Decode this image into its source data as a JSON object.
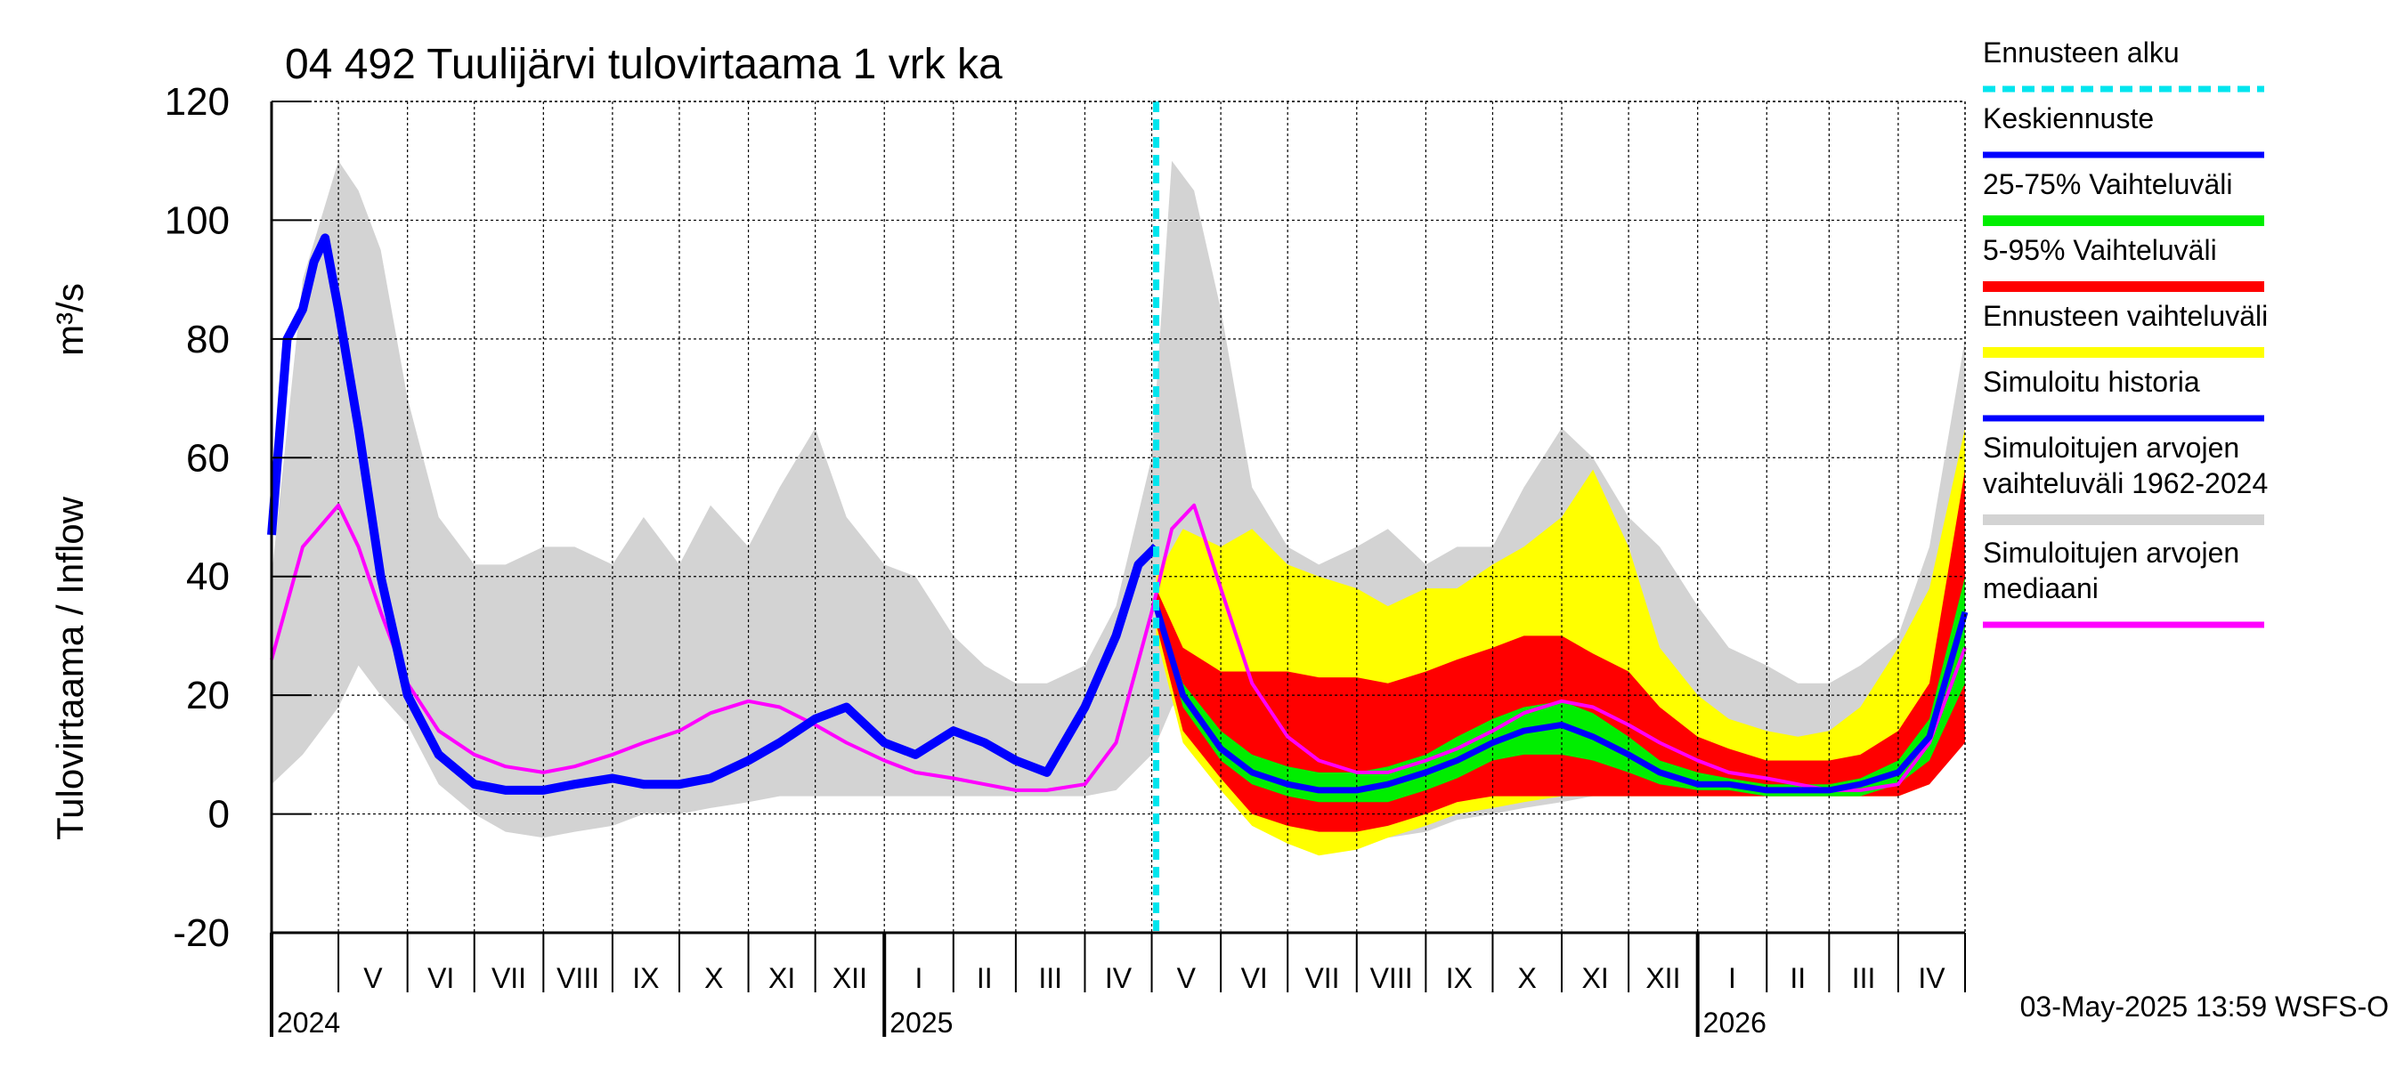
{
  "chart_data": {
    "type": "area",
    "title": "04 492 Tuulijärvi tulovirtaama 1 vrk ka",
    "ylabel": "Tulovirtaama / Inflow",
    "yunit": "m³/s",
    "ylim": [
      -20,
      120
    ],
    "yticks": [
      -20,
      0,
      20,
      40,
      60,
      80,
      100,
      120
    ],
    "xlim": [
      "2024-04-01",
      "2026-05-01"
    ],
    "grid": true,
    "legend_position": "right",
    "forecast_start": "2025-05-03",
    "months": [
      {
        "label": "V",
        "start": "2024-05-01"
      },
      {
        "label": "VI",
        "start": "2024-06-01"
      },
      {
        "label": "VII",
        "start": "2024-07-01"
      },
      {
        "label": "VIII",
        "start": "2024-08-01"
      },
      {
        "label": "IX",
        "start": "2024-09-01"
      },
      {
        "label": "X",
        "start": "2024-10-01"
      },
      {
        "label": "XI",
        "start": "2024-11-01"
      },
      {
        "label": "XII",
        "start": "2024-12-01"
      },
      {
        "label": "I",
        "start": "2025-01-01"
      },
      {
        "label": "II",
        "start": "2025-02-01"
      },
      {
        "label": "III",
        "start": "2025-03-01"
      },
      {
        "label": "IV",
        "start": "2025-04-01"
      },
      {
        "label": "V",
        "start": "2025-05-01"
      },
      {
        "label": "VI",
        "start": "2025-06-01"
      },
      {
        "label": "VII",
        "start": "2025-07-01"
      },
      {
        "label": "VIII",
        "start": "2025-08-01"
      },
      {
        "label": "IX",
        "start": "2025-09-01"
      },
      {
        "label": "X",
        "start": "2025-10-01"
      },
      {
        "label": "XI",
        "start": "2025-11-01"
      },
      {
        "label": "XII",
        "start": "2025-12-01"
      },
      {
        "label": "I",
        "start": "2026-01-01"
      },
      {
        "label": "II",
        "start": "2026-02-01"
      },
      {
        "label": "III",
        "start": "2026-03-01"
      },
      {
        "label": "IV",
        "start": "2026-04-01"
      }
    ],
    "years": [
      {
        "label": "2024",
        "date": "2024-04-01"
      },
      {
        "label": "2025",
        "date": "2025-01-01"
      },
      {
        "label": "2026",
        "date": "2026-01-01"
      }
    ],
    "legend": [
      {
        "label": "Ennusteen alku",
        "color": "#00e5ee",
        "style": "dashed"
      },
      {
        "label": "Keskiennuste",
        "color": "#0000ff",
        "style": "line"
      },
      {
        "label": "25-75% Vaihteluväli",
        "color": "#00ee00",
        "style": "band"
      },
      {
        "label": "5-95% Vaihteluväli",
        "color": "#ff0000",
        "style": "band"
      },
      {
        "label": "Ennusteen vaihteluväli",
        "color": "#ffff00",
        "style": "band"
      },
      {
        "label": "Simuloitu historia",
        "color": "#0000ff",
        "style": "line"
      },
      {
        "label": "Simuloitujen arvojen\nvaihteluväli 1962-2024",
        "color": "#d3d3d3",
        "style": "band"
      },
      {
        "label": "Simuloitujen arvojen\nmediaani",
        "color": "#ff00ff",
        "style": "line"
      }
    ],
    "series": [
      {
        "name": "Simuloitujen arvojen vaihteluväli 1962-2024",
        "kind": "band",
        "color": "#d3d3d3",
        "x": [
          "2024-04-01",
          "2024-04-15",
          "2024-05-01",
          "2024-05-10",
          "2024-05-20",
          "2024-06-01",
          "2024-06-15",
          "2024-07-01",
          "2024-07-15",
          "2024-08-01",
          "2024-08-15",
          "2024-09-01",
          "2024-09-15",
          "2024-10-01",
          "2024-10-15",
          "2024-11-01",
          "2024-11-15",
          "2024-12-01",
          "2024-12-15",
          "2025-01-01",
          "2025-01-15",
          "2025-02-01",
          "2025-02-15",
          "2025-03-01",
          "2025-03-15",
          "2025-04-01",
          "2025-04-15",
          "2025-05-01",
          "2025-05-10",
          "2025-05-20",
          "2025-06-01",
          "2025-06-15",
          "2025-07-01",
          "2025-07-15",
          "2025-08-01",
          "2025-08-15",
          "2025-09-01",
          "2025-09-15",
          "2025-10-01",
          "2025-10-15",
          "2025-11-01",
          "2025-11-15",
          "2025-12-01",
          "2025-12-15",
          "2026-01-01",
          "2026-01-15",
          "2026-02-01",
          "2026-02-15",
          "2026-03-01",
          "2026-03-15",
          "2026-04-01",
          "2026-04-15",
          "2026-05-01"
        ],
        "low": [
          5,
          10,
          18,
          25,
          20,
          15,
          5,
          0,
          -3,
          -4,
          -3,
          -2,
          0,
          0,
          1,
          2,
          3,
          3,
          3,
          3,
          3,
          3,
          3,
          3,
          3,
          3,
          4,
          10,
          18,
          22,
          15,
          6,
          1,
          -2,
          -4,
          -4,
          -3,
          -1,
          0,
          1,
          2,
          3,
          3,
          3,
          3,
          3,
          3,
          3,
          3,
          3,
          3,
          5,
          15
        ],
        "high": [
          40,
          90,
          110,
          105,
          95,
          70,
          50,
          42,
          42,
          45,
          45,
          42,
          50,
          42,
          52,
          45,
          55,
          65,
          50,
          42,
          40,
          30,
          25,
          22,
          22,
          25,
          35,
          60,
          110,
          105,
          85,
          55,
          45,
          42,
          45,
          48,
          42,
          45,
          45,
          55,
          65,
          60,
          50,
          45,
          35,
          28,
          25,
          22,
          22,
          25,
          30,
          45,
          80
        ]
      },
      {
        "name": "Ennusteen vaihteluväli",
        "kind": "band",
        "color": "#ffff00",
        "x": [
          "2025-05-03",
          "2025-05-15",
          "2025-06-01",
          "2025-06-15",
          "2025-07-01",
          "2025-07-15",
          "2025-08-01",
          "2025-08-15",
          "2025-09-01",
          "2025-09-15",
          "2025-10-01",
          "2025-10-15",
          "2025-11-01",
          "2025-11-15",
          "2025-12-01",
          "2025-12-15",
          "2026-01-01",
          "2026-01-15",
          "2026-02-01",
          "2026-02-15",
          "2026-03-01",
          "2026-03-15",
          "2026-04-01",
          "2026-04-15",
          "2026-05-01"
        ],
        "low": [
          30,
          12,
          4,
          -2,
          -5,
          -7,
          -6,
          -4,
          -2,
          0,
          1,
          2,
          3,
          3,
          3,
          3,
          3,
          3,
          3,
          3,
          3,
          3,
          3,
          5,
          15
        ],
        "high": [
          40,
          48,
          45,
          48,
          42,
          40,
          38,
          35,
          38,
          38,
          42,
          45,
          50,
          58,
          45,
          28,
          20,
          16,
          14,
          13,
          14,
          18,
          28,
          38,
          65
        ]
      },
      {
        "name": "5-95% Vaihteluväli",
        "kind": "band",
        "color": "#ff0000",
        "x": [
          "2025-05-03",
          "2025-05-15",
          "2025-06-01",
          "2025-06-15",
          "2025-07-01",
          "2025-07-15",
          "2025-08-01",
          "2025-08-15",
          "2025-09-01",
          "2025-09-15",
          "2025-10-01",
          "2025-10-15",
          "2025-11-01",
          "2025-11-15",
          "2025-12-01",
          "2025-12-15",
          "2026-01-01",
          "2026-01-15",
          "2026-02-01",
          "2026-02-15",
          "2026-03-01",
          "2026-03-15",
          "2026-04-01",
          "2026-04-15",
          "2026-05-01"
        ],
        "low": [
          32,
          14,
          6,
          0,
          -2,
          -3,
          -3,
          -2,
          0,
          2,
          3,
          3,
          3,
          3,
          3,
          3,
          3,
          3,
          3,
          3,
          3,
          3,
          3,
          5,
          12
        ],
        "high": [
          38,
          28,
          24,
          24,
          24,
          23,
          23,
          22,
          24,
          26,
          28,
          30,
          30,
          27,
          24,
          18,
          13,
          11,
          9,
          9,
          9,
          10,
          14,
          22,
          58
        ]
      },
      {
        "name": "25-75% Vaihteluväli",
        "kind": "band",
        "color": "#00ee00",
        "x": [
          "2025-05-03",
          "2025-05-15",
          "2025-06-01",
          "2025-06-15",
          "2025-07-01",
          "2025-07-15",
          "2025-08-01",
          "2025-08-15",
          "2025-09-01",
          "2025-09-15",
          "2025-10-01",
          "2025-10-15",
          "2025-11-01",
          "2025-11-15",
          "2025-12-01",
          "2025-12-15",
          "2026-01-01",
          "2026-01-15",
          "2026-02-01",
          "2026-02-15",
          "2026-03-01",
          "2026-03-15",
          "2026-04-01",
          "2026-04-15",
          "2026-05-01"
        ],
        "low": [
          34,
          18,
          9,
          5,
          3,
          2,
          2,
          2,
          4,
          6,
          9,
          10,
          10,
          9,
          7,
          5,
          4,
          4,
          3,
          3,
          3,
          3,
          5,
          9,
          22
        ],
        "high": [
          36,
          22,
          14,
          10,
          8,
          7,
          7,
          8,
          10,
          13,
          16,
          18,
          19,
          17,
          13,
          9,
          7,
          6,
          5,
          5,
          5,
          6,
          9,
          16,
          40
        ]
      },
      {
        "name": "Simuloitujen arvojen mediaani",
        "kind": "line",
        "color": "#ff00ff",
        "x": [
          "2024-04-01",
          "2024-04-15",
          "2024-05-01",
          "2024-05-10",
          "2024-05-20",
          "2024-06-01",
          "2024-06-15",
          "2024-07-01",
          "2024-07-15",
          "2024-08-01",
          "2024-08-15",
          "2024-09-01",
          "2024-09-15",
          "2024-10-01",
          "2024-10-15",
          "2024-11-01",
          "2024-11-15",
          "2024-12-01",
          "2024-12-15",
          "2025-01-01",
          "2025-01-15",
          "2025-02-01",
          "2025-02-15",
          "2025-03-01",
          "2025-03-15",
          "2025-04-01",
          "2025-04-15",
          "2025-05-01",
          "2025-05-10",
          "2025-05-20",
          "2025-06-01",
          "2025-06-15",
          "2025-07-01",
          "2025-07-15",
          "2025-08-01",
          "2025-08-15",
          "2025-09-01",
          "2025-09-15",
          "2025-10-01",
          "2025-10-15",
          "2025-11-01",
          "2025-11-15",
          "2025-12-01",
          "2025-12-15",
          "2026-01-01",
          "2026-01-15",
          "2026-02-01",
          "2026-02-15",
          "2026-03-01",
          "2026-03-15",
          "2026-04-01",
          "2026-04-15",
          "2026-05-01"
        ],
        "y": [
          26,
          45,
          52,
          45,
          34,
          22,
          14,
          10,
          8,
          7,
          8,
          10,
          12,
          14,
          17,
          19,
          18,
          15,
          12,
          9,
          7,
          6,
          5,
          4,
          4,
          5,
          12,
          34,
          48,
          52,
          38,
          22,
          13,
          9,
          7,
          7,
          9,
          11,
          14,
          17,
          19,
          18,
          15,
          12,
          9,
          7,
          6,
          5,
          4,
          4,
          5,
          12,
          28
        ]
      },
      {
        "name": "Simuloitu historia",
        "kind": "line",
        "color": "#0000ff",
        "x": [
          "2024-04-01",
          "2024-04-08",
          "2024-04-15",
          "2024-04-20",
          "2024-04-25",
          "2024-05-01",
          "2024-05-10",
          "2024-05-20",
          "2024-06-01",
          "2024-06-15",
          "2024-07-01",
          "2024-07-15",
          "2024-08-01",
          "2024-08-15",
          "2024-09-01",
          "2024-09-15",
          "2024-10-01",
          "2024-10-15",
          "2024-11-01",
          "2024-11-15",
          "2024-12-01",
          "2024-12-15",
          "2025-01-01",
          "2025-01-15",
          "2025-02-01",
          "2025-02-15",
          "2025-03-01",
          "2025-03-15",
          "2025-04-01",
          "2025-04-15",
          "2025-04-25",
          "2025-05-03"
        ],
        "y": [
          47,
          80,
          85,
          93,
          97,
          85,
          65,
          40,
          20,
          10,
          5,
          4,
          4,
          5,
          6,
          5,
          5,
          6,
          9,
          12,
          16,
          18,
          12,
          10,
          14,
          12,
          9,
          7,
          18,
          30,
          42,
          45
        ]
      },
      {
        "name": "Keskiennuste",
        "kind": "line",
        "color": "#0000ff",
        "x": [
          "2025-05-03",
          "2025-05-15",
          "2025-06-01",
          "2025-06-15",
          "2025-07-01",
          "2025-07-15",
          "2025-08-01",
          "2025-08-15",
          "2025-09-01",
          "2025-09-15",
          "2025-10-01",
          "2025-10-15",
          "2025-11-01",
          "2025-11-15",
          "2025-12-01",
          "2025-12-15",
          "2026-01-01",
          "2026-01-15",
          "2026-02-01",
          "2026-02-15",
          "2026-03-01",
          "2026-03-15",
          "2026-04-01",
          "2026-04-15",
          "2026-05-01"
        ],
        "y": [
          35,
          20,
          11,
          7,
          5,
          4,
          4,
          5,
          7,
          9,
          12,
          14,
          15,
          13,
          10,
          7,
          5,
          5,
          4,
          4,
          4,
          5,
          7,
          13,
          34
        ]
      }
    ]
  },
  "footer": {
    "timestamp": "03-May-2025 13:59 WSFS-O"
  }
}
